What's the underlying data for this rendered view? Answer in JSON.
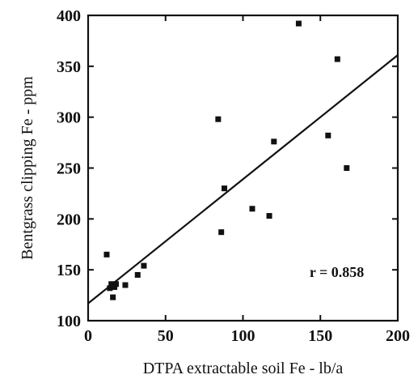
{
  "chart_data": {
    "type": "scatter",
    "xlabel": "DTPA extractable soil Fe - lb/a",
    "ylabel": "Bentgrass clipping Fe - ppm",
    "xlim": [
      0,
      200
    ],
    "ylim": [
      100,
      400
    ],
    "x_ticks": [
      0,
      50,
      100,
      150,
      200
    ],
    "y_ticks": [
      100,
      150,
      200,
      250,
      300,
      350,
      400
    ],
    "x_tick_labels": [
      "0",
      "50",
      "100",
      "150",
      "200"
    ],
    "y_tick_labels": [
      "100",
      "150",
      "200",
      "250",
      "300",
      "350",
      "400"
    ],
    "grid": false,
    "series": [
      {
        "points": [
          {
            "x": 12,
            "y": 165
          },
          {
            "x": 14,
            "y": 132
          },
          {
            "x": 15,
            "y": 136
          },
          {
            "x": 16,
            "y": 123
          },
          {
            "x": 17,
            "y": 133
          },
          {
            "x": 18,
            "y": 136
          },
          {
            "x": 24,
            "y": 135
          },
          {
            "x": 32,
            "y": 145
          },
          {
            "x": 36,
            "y": 154
          },
          {
            "x": 84,
            "y": 298
          },
          {
            "x": 86,
            "y": 187
          },
          {
            "x": 88,
            "y": 230
          },
          {
            "x": 106,
            "y": 210
          },
          {
            "x": 117,
            "y": 203
          },
          {
            "x": 120,
            "y": 276
          },
          {
            "x": 136,
            "y": 392
          },
          {
            "x": 155,
            "y": 282
          },
          {
            "x": 161,
            "y": 357
          },
          {
            "x": 167,
            "y": 250
          }
        ]
      }
    ],
    "trendline": {
      "x": [
        0,
        200
      ],
      "y": [
        117,
        361
      ]
    },
    "annotation": "r = 0.858",
    "annotation_at": {
      "x": 143,
      "y": 143
    },
    "colors": {
      "marker": "#111111",
      "line": "#111111",
      "axes": "#111111",
      "background": "#ffffff"
    }
  }
}
